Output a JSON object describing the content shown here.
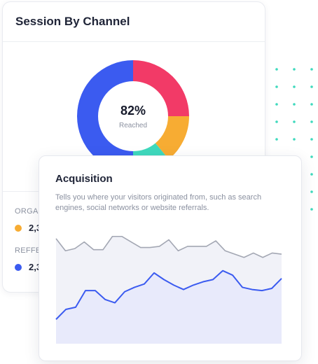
{
  "session_card": {
    "title": "Session By Channel",
    "donut": {
      "value": "82%",
      "sublabel": "Reached",
      "segments": [
        {
          "name": "red",
          "color": "#f23a67",
          "fraction": 0.25
        },
        {
          "name": "orange",
          "color": "#f7ac33",
          "fraction": 0.14
        },
        {
          "name": "teal",
          "color": "#3fd9bd",
          "fraction": 0.11
        },
        {
          "name": "blue",
          "color": "#3b5bf0",
          "fraction": 0.5
        }
      ]
    },
    "legend": [
      {
        "label": "ORGAN",
        "value": "2,3",
        "color": "#f7ac33"
      },
      {
        "label": "REFFE",
        "value": "2,3",
        "color": "#3b5bf0"
      }
    ]
  },
  "acquisition_card": {
    "title": "Acquisition",
    "description": "Tells you where your visitors originated from, such as search engines, social networks or website referrals.",
    "chart_data": {
      "type": "area",
      "series": [
        {
          "color": "#a3a7b3",
          "fill": "#f1f2f8",
          "values": [
            0.95,
            0.84,
            0.86,
            0.92,
            0.85,
            0.85,
            0.97,
            0.97,
            0.92,
            0.87,
            0.87,
            0.88,
            0.94,
            0.84,
            0.88,
            0.88,
            0.88,
            0.93,
            0.84,
            0.81,
            0.78,
            0.82,
            0.78,
            0.82,
            0.81
          ]
        },
        {
          "color": "#3b5bf0",
          "fill": "#e8eafb",
          "values": [
            0.22,
            0.31,
            0.33,
            0.48,
            0.48,
            0.4,
            0.37,
            0.47,
            0.51,
            0.54,
            0.64,
            0.58,
            0.53,
            0.49,
            0.53,
            0.56,
            0.58,
            0.66,
            0.62,
            0.51,
            0.49,
            0.48,
            0.5,
            0.59
          ]
        }
      ]
    }
  },
  "colors": {
    "dot_grid": "#3fd9bd",
    "title_text": "#1f2437",
    "muted_text": "#8b91a0"
  }
}
